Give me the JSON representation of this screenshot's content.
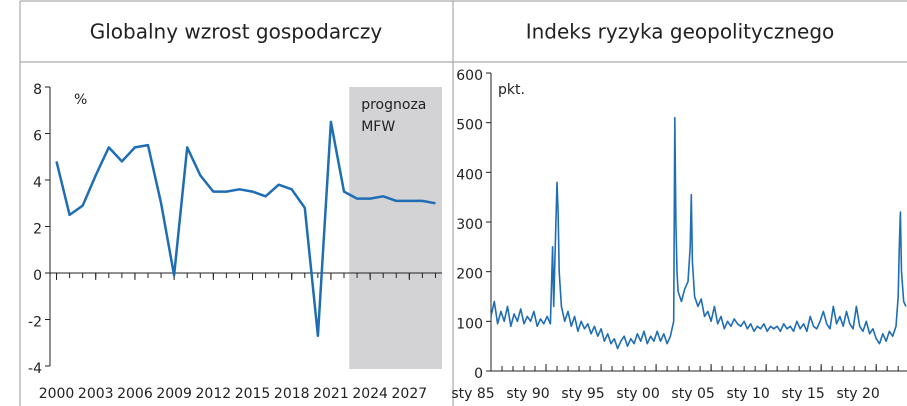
{
  "chart_data": [
    {
      "type": "line",
      "title": "Globalny wzrost gospodarczy",
      "unit_label": "%",
      "color": "#1f6db5",
      "x": [
        2000,
        2001,
        2002,
        2003,
        2004,
        2005,
        2006,
        2007,
        2008,
        2009,
        2010,
        2011,
        2012,
        2013,
        2014,
        2015,
        2016,
        2017,
        2018,
        2019,
        2020,
        2021,
        2022,
        2023,
        2024,
        2025,
        2026,
        2027,
        2028,
        2029
      ],
      "values": [
        4.8,
        2.5,
        2.9,
        4.2,
        5.4,
        4.8,
        5.4,
        5.5,
        3.0,
        -0.1,
        5.4,
        4.2,
        3.5,
        3.5,
        3.6,
        3.5,
        3.3,
        3.8,
        3.6,
        2.8,
        -2.7,
        6.5,
        3.5,
        3.2,
        3.2,
        3.3,
        3.1,
        3.1,
        3.1,
        3.0
      ],
      "xlim": [
        1999.5,
        2029.5
      ],
      "xticks": [
        2000,
        2003,
        2006,
        2009,
        2012,
        2015,
        2018,
        2021,
        2024,
        2027
      ],
      "ylim": [
        -4,
        8
      ],
      "yticks": [
        -4,
        -2,
        0,
        2,
        4,
        6,
        8
      ],
      "shade": {
        "x": [
          2022.4,
          2029.5
        ],
        "color": "#d3d3d5",
        "label": [
          "prognoza",
          "MFW"
        ]
      }
    },
    {
      "type": "line",
      "title": "Indeks ryzyka geopolitycznego",
      "unit_label": "pkt.",
      "color": "#1f6db5",
      "x": [
        1985.0,
        1985.3,
        1985.6,
        1985.9,
        1986.2,
        1986.5,
        1986.8,
        1987.1,
        1987.4,
        1987.7,
        1988.0,
        1988.3,
        1988.6,
        1988.9,
        1989.2,
        1989.5,
        1989.8,
        1990.1,
        1990.4,
        1990.6,
        1990.7,
        1990.9,
        1991.0,
        1991.1,
        1991.2,
        1991.4,
        1991.7,
        1992.0,
        1992.3,
        1992.6,
        1992.9,
        1993.2,
        1993.5,
        1993.8,
        1994.1,
        1994.4,
        1994.7,
        1995.0,
        1995.3,
        1995.6,
        1995.9,
        1996.2,
        1996.5,
        1996.8,
        1997.1,
        1997.4,
        1997.7,
        1998.0,
        1998.3,
        1998.6,
        1998.9,
        1999.2,
        1999.5,
        1999.8,
        2000.1,
        2000.4,
        2000.7,
        2001.0,
        2001.3,
        2001.6,
        2001.7,
        2001.8,
        2001.9,
        2002.0,
        2002.3,
        2002.6,
        2002.9,
        2003.1,
        2003.2,
        2003.3,
        2003.5,
        2003.8,
        2004.1,
        2004.4,
        2004.7,
        2005.0,
        2005.3,
        2005.6,
        2005.9,
        2006.2,
        2006.5,
        2006.8,
        2007.1,
        2007.4,
        2007.7,
        2008.0,
        2008.3,
        2008.6,
        2008.9,
        2009.2,
        2009.5,
        2009.8,
        2010.1,
        2010.4,
        2010.7,
        2011.0,
        2011.3,
        2011.6,
        2011.9,
        2012.2,
        2012.5,
        2012.8,
        2013.1,
        2013.4,
        2013.7,
        2014.0,
        2014.3,
        2014.6,
        2014.9,
        2015.2,
        2015.5,
        2015.8,
        2016.1,
        2016.4,
        2016.7,
        2017.0,
        2017.3,
        2017.6,
        2017.9,
        2018.2,
        2018.5,
        2018.8,
        2019.1,
        2019.4,
        2019.7,
        2020.0,
        2020.3,
        2020.6,
        2020.9,
        2021.2,
        2021.5,
        2021.8,
        2022.0,
        2022.1,
        2022.2,
        2022.3,
        2022.5,
        2022.7
      ],
      "values": [
        110,
        140,
        95,
        120,
        100,
        130,
        90,
        115,
        100,
        125,
        95,
        110,
        100,
        120,
        90,
        105,
        95,
        110,
        95,
        250,
        130,
        300,
        380,
        320,
        200,
        130,
        100,
        120,
        90,
        110,
        80,
        100,
        85,
        95,
        75,
        90,
        70,
        85,
        60,
        75,
        55,
        65,
        45,
        60,
        70,
        50,
        65,
        55,
        75,
        60,
        80,
        55,
        70,
        60,
        80,
        60,
        75,
        55,
        70,
        100,
        510,
        300,
        200,
        160,
        140,
        165,
        180,
        250,
        355,
        220,
        150,
        130,
        145,
        110,
        120,
        100,
        130,
        95,
        110,
        85,
        100,
        90,
        105,
        95,
        90,
        100,
        85,
        95,
        80,
        90,
        85,
        95,
        80,
        90,
        85,
        90,
        80,
        95,
        85,
        90,
        80,
        100,
        85,
        95,
        80,
        110,
        90,
        85,
        100,
        120,
        95,
        85,
        130,
        95,
        110,
        90,
        120,
        95,
        85,
        130,
        90,
        80,
        100,
        75,
        85,
        65,
        55,
        75,
        60,
        80,
        70,
        90,
        150,
        250,
        320,
        200,
        140,
        130
      ],
      "xlim": [
        1985,
        2022.8
      ],
      "xticks": [
        {
          "value": 1985,
          "label": "sty 85"
        },
        {
          "value": 1990,
          "label": "sty 90"
        },
        {
          "value": 1995,
          "label": "sty 95"
        },
        {
          "value": 2000,
          "label": "sty 00"
        },
        {
          "value": 2005,
          "label": "sty 05"
        },
        {
          "value": 2010,
          "label": "sty 10"
        },
        {
          "value": 2015,
          "label": "sty 15"
        },
        {
          "value": 2020,
          "label": "sty 20"
        }
      ],
      "ylim": [
        0,
        600
      ],
      "yticks": [
        0,
        100,
        200,
        300,
        400,
        500,
        600
      ]
    }
  ]
}
